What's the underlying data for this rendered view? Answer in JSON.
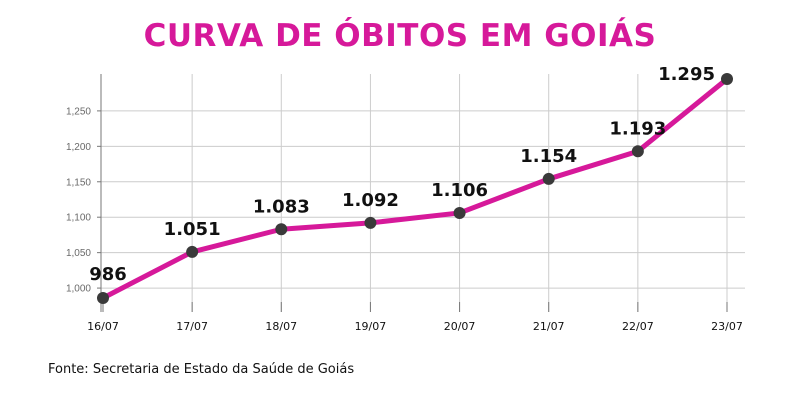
{
  "title": "CURVA DE ÓBITOS EM GOIÁS",
  "source": "Fonte: Secretaria de Estado da Saúde de Goiás",
  "colors": {
    "title": "#d6199a",
    "line": "#d6199a",
    "marker": "#3a3a3a",
    "grid": "#cccccc"
  },
  "chart_data": {
    "type": "line",
    "title": "CURVA DE ÓBITOS EM GOIÁS",
    "xlabel": "",
    "ylabel": "",
    "categories": [
      "16/07",
      "17/07",
      "18/07",
      "19/07",
      "20/07",
      "21/07",
      "22/07",
      "23/07"
    ],
    "series": [
      {
        "values": [
          986,
          1051,
          1083,
          1092,
          1106,
          1154,
          1193,
          1295
        ],
        "labels": [
          "986",
          "1.051",
          "1.083",
          "1.092",
          "1.106",
          "1.154",
          "1.193",
          "1.295"
        ]
      }
    ],
    "yticks": [
      1000,
      1050,
      1100,
      1150,
      1200,
      1250
    ],
    "ytick_labels": [
      "1,000",
      "1,050",
      "1,100",
      "1,150",
      "1,200",
      "1,250"
    ],
    "ylim": [
      986,
      1295
    ],
    "grid": true,
    "legend": "none"
  }
}
